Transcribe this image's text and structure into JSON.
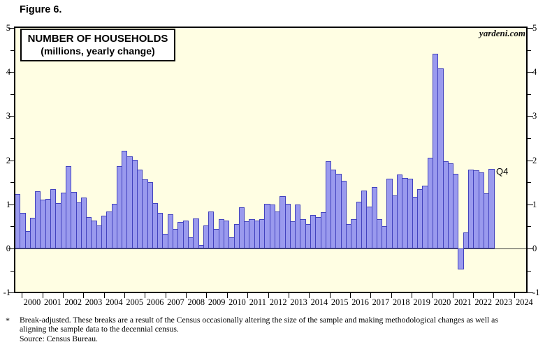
{
  "figure_label": "Figure 6.",
  "watermark": "yardeni.com",
  "title_box": {
    "line1": "NUMBER OF HOUSEHOLDS",
    "line2": "(millions, yearly change)"
  },
  "annotation_q4": "Q4",
  "y_axis": {
    "major_ticks": [
      5,
      4,
      3,
      2,
      1,
      0,
      -1
    ]
  },
  "x_axis": {
    "years": [
      2000,
      2001,
      2002,
      2003,
      2004,
      2005,
      2006,
      2007,
      2008,
      2009,
      2010,
      2011,
      2012,
      2013,
      2014,
      2015,
      2016,
      2017,
      2018,
      2019,
      2020,
      2021,
      2022,
      2023,
      2024
    ]
  },
  "footnote": {
    "marker": "*",
    "lines": [
      "Break-adjusted. These breaks are a result of the Census occasionally altering the size of the sample and making methodological changes as well as",
      "aligning the sample data to the decennial census.",
      "Source: Census Bureau."
    ]
  },
  "colors": {
    "plot_background": "#fffee3",
    "bar_fill": "#9a9aee",
    "bar_border": "#4242be",
    "frame": "#000000",
    "zero_line": "#404040"
  },
  "chart_data": {
    "type": "bar",
    "title": "NUMBER OF HOUSEHOLDS",
    "subtitle": "(millions, yearly change)",
    "frequency": "quarterly",
    "start": "1999-Q3",
    "end": "2022-Q4",
    "last_bar_label": "Q4",
    "ylim": [
      -1,
      5
    ],
    "y_ticks": [
      -1,
      0,
      1,
      2,
      3,
      4,
      5
    ],
    "grid": false,
    "legend": "none",
    "series": [
      {
        "name": "Number of households, yearly change (millions)",
        "values": [
          1.23,
          0.8,
          0.39,
          0.7,
          1.3,
          1.11,
          1.13,
          1.35,
          1.03,
          1.26,
          1.86,
          1.28,
          1.05,
          1.15,
          0.71,
          0.63,
          0.52,
          0.75,
          0.84,
          1.01,
          1.86,
          2.22,
          2.09,
          2.01,
          1.79,
          1.56,
          1.51,
          1.03,
          0.8,
          0.34,
          0.78,
          0.45,
          0.6,
          0.63,
          0.25,
          0.68,
          0.08,
          0.52,
          0.84,
          0.44,
          0.66,
          0.63,
          0.25,
          0.55,
          0.94,
          0.62,
          0.66,
          0.64,
          0.66,
          1.02,
          1.0,
          0.84,
          1.18,
          1.01,
          0.62,
          1.0,
          0.66,
          0.55,
          0.76,
          0.71,
          0.83,
          1.97,
          1.79,
          1.7,
          1.53,
          0.56,
          0.66,
          1.06,
          1.31,
          0.95,
          1.39,
          0.66,
          0.5,
          1.59,
          1.21,
          1.68,
          1.6,
          1.58,
          1.17,
          1.34,
          1.43,
          2.05,
          4.42,
          4.08,
          1.97,
          1.93,
          1.69,
          -0.48,
          0.36,
          1.79,
          1.78,
          1.73,
          1.25,
          1.8
        ]
      }
    ]
  }
}
